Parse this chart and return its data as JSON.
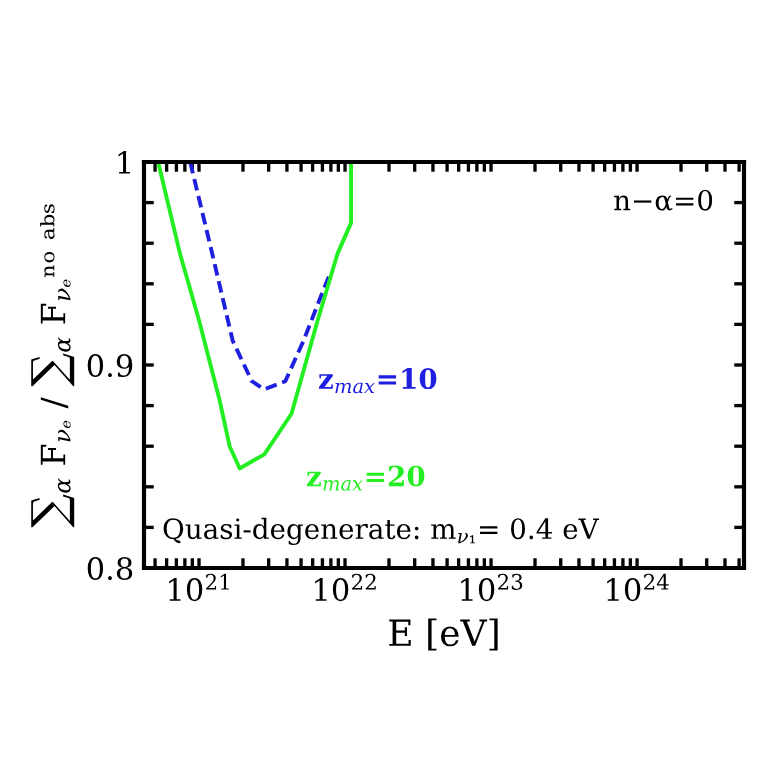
{
  "chart_data": {
    "type": "line",
    "xlabel": "E [eV]",
    "ylabel": "∑$_{α}$ F$_{νₑ}$ / ∑$_{α}$ F$_{νₑ}$ⁿᵒ ᵃᵇˢ",
    "log": "x",
    "grid": false,
    "marker": "none",
    "xlim": [
      4.2e+20,
      5.4e+24
    ],
    "ylim": [
      0.8,
      1.0
    ],
    "xticks": [
      {
        "value": 5e+20,
        "label": null
      },
      {
        "value": 6e+20,
        "label": null
      },
      {
        "value": 7e+20,
        "label": null
      },
      {
        "value": 8e+20,
        "label": null
      },
      {
        "value": 9e+20,
        "label": null
      },
      {
        "value": 1e+21,
        "label": "10$^{21}$"
      },
      {
        "value": 2e+21,
        "label": null
      },
      {
        "value": 3e+21,
        "label": null
      },
      {
        "value": 4e+21,
        "label": null
      },
      {
        "value": 5e+21,
        "label": null
      },
      {
        "value": 6e+21,
        "label": null
      },
      {
        "value": 7e+21,
        "label": null
      },
      {
        "value": 8e+21,
        "label": null
      },
      {
        "value": 9e+21,
        "label": null
      },
      {
        "value": 1e+22,
        "label": "10$^{22}$"
      },
      {
        "value": 2e+22,
        "label": null
      },
      {
        "value": 3e+22,
        "label": null
      },
      {
        "value": 4e+22,
        "label": null
      },
      {
        "value": 5e+22,
        "label": null
      },
      {
        "value": 6e+22,
        "label": null
      },
      {
        "value": 7e+22,
        "label": null
      },
      {
        "value": 8e+22,
        "label": null
      },
      {
        "value": 9e+22,
        "label": null
      },
      {
        "value": 1e+23,
        "label": "10$^{23}$"
      },
      {
        "value": 2e+23,
        "label": null
      },
      {
        "value": 3e+23,
        "label": null
      },
      {
        "value": 4e+23,
        "label": null
      },
      {
        "value": 5e+23,
        "label": null
      },
      {
        "value": 6e+23,
        "label": null
      },
      {
        "value": 7e+23,
        "label": null
      },
      {
        "value": 8e+23,
        "label": null
      },
      {
        "value": 9e+23,
        "label": null
      },
      {
        "value": 1e+24,
        "label": "10$^{24}$"
      },
      {
        "value": 2e+24,
        "label": null
      },
      {
        "value": 3e+24,
        "label": null
      },
      {
        "value": 4e+24,
        "label": null
      },
      {
        "value": 5e+24,
        "label": null
      }
    ],
    "yticks": [
      {
        "value": 0.8,
        "label": "0.8"
      },
      {
        "value": 0.82,
        "label": null
      },
      {
        "value": 0.84,
        "label": null
      },
      {
        "value": 0.86,
        "label": null
      },
      {
        "value": 0.88,
        "label": null
      },
      {
        "value": 0.9,
        "label": "0.9"
      },
      {
        "value": 0.92,
        "label": null
      },
      {
        "value": 0.94,
        "label": null
      },
      {
        "value": 0.96,
        "label": null
      },
      {
        "value": 0.98,
        "label": null
      },
      {
        "value": 1.0,
        "label": "1"
      }
    ],
    "series": [
      {
        "color": "#1f1fe0",
        "line_style": "dashed",
        "x": [
          8.7e+20,
          1.23e+21,
          1.7e+21,
          2.3e+21,
          2.8e+21,
          3.9e+21,
          5.2e+21,
          7.2e+21,
          7.9e+21
        ],
        "values": [
          1.0,
          0.955,
          0.912,
          0.892,
          0.888,
          0.892,
          0.912,
          0.938,
          0.945
        ]
      },
      {
        "color": "#22ee22",
        "line_style": "solid",
        "x": [
          4.2e+20,
          5.25e+20,
          7.4e+20,
          1e+21,
          1.38e+21,
          1.62e+21,
          1.9e+21,
          2.8e+21,
          4.3e+21,
          6.5e+21,
          8.9e+21,
          1.1e+22,
          1.1e+22
        ],
        "values": [
          1.0,
          1.0,
          0.955,
          0.922,
          0.883,
          0.86,
          0.849,
          0.856,
          0.876,
          0.922,
          0.955,
          0.97,
          1.0
        ]
      }
    ],
    "annotations": [
      "z$_{max}$=10",
      "z$_{max}$=20",
      "n−α=0",
      "Quasi-degenerate: m$_{ν₁}$= 0.4 eV"
    ]
  }
}
